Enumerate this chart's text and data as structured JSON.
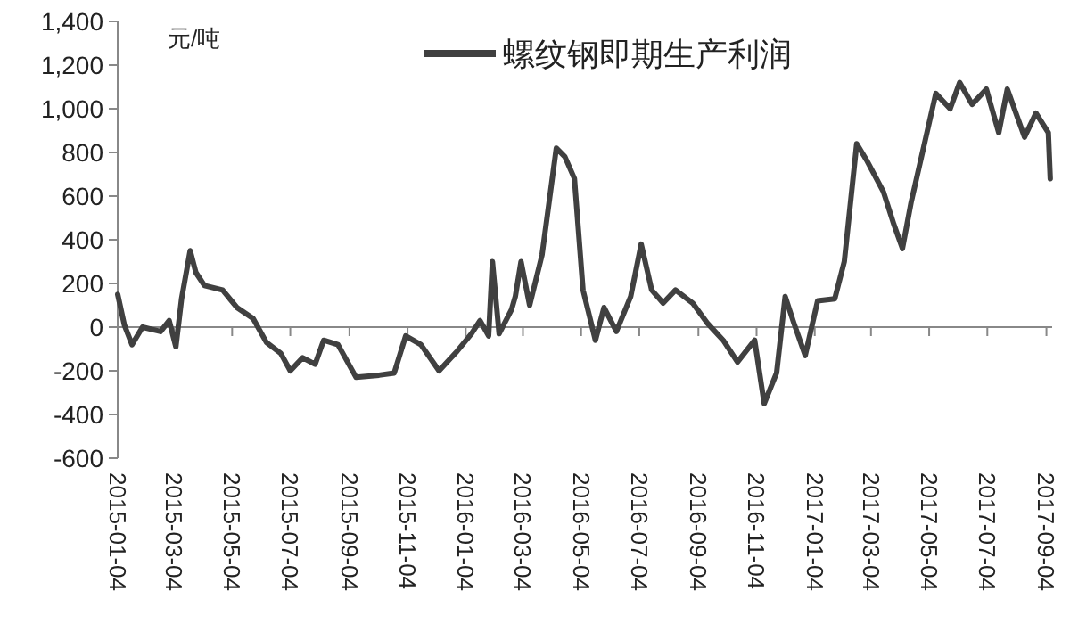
{
  "chart_data": {
    "type": "line",
    "ylabel": "元/吨",
    "legend": "top",
    "xlim": [
      "2015-01-04",
      "2017-09-10"
    ],
    "xticks": [
      "2015-01-04",
      "2015-03-04",
      "2015-05-04",
      "2015-07-04",
      "2015-09-04",
      "2015-11-04",
      "2016-01-04",
      "2016-03-04",
      "2016-05-04",
      "2016-07-04",
      "2016-09-04",
      "2016-11-04",
      "2017-01-04",
      "2017-03-04",
      "2017-05-04",
      "2017-07-04",
      "2017-09-04"
    ],
    "ylim": [
      -600,
      1400
    ],
    "yticks": [
      {
        "value": -600,
        "label": "-600"
      },
      {
        "value": -400,
        "label": "-400"
      },
      {
        "value": -200,
        "label": "-200"
      },
      0,
      200,
      400,
      600,
      800,
      {
        "value": 1000,
        "label": "1,000"
      },
      {
        "value": 1200,
        "label": "1,200"
      },
      {
        "value": 1400,
        "label": "1,400"
      }
    ],
    "series": [
      {
        "name": "螺纹钢即期生产利润",
        "color": "#404040",
        "x": [
          "2015-01-04",
          "2015-01-11",
          "2015-01-19",
          "2015-01-30",
          "2015-02-18",
          "2015-02-27",
          "2015-03-06",
          "2015-03-12",
          "2015-03-21",
          "2015-03-27",
          "2015-04-05",
          "2015-04-24",
          "2015-05-09",
          "2015-05-26",
          "2015-06-09",
          "2015-06-24",
          "2015-07-04",
          "2015-07-17",
          "2015-07-30",
          "2015-08-08",
          "2015-08-23",
          "2015-09-11",
          "2015-10-05",
          "2015-10-21",
          "2015-11-02",
          "2015-11-18",
          "2015-12-07",
          "2015-12-26",
          "2016-01-10",
          "2016-01-19",
          "2016-01-28",
          "2016-02-01",
          "2016-02-08",
          "2016-02-21",
          "2016-02-25",
          "2016-03-02",
          "2016-03-11",
          "2016-03-24",
          "2016-04-08",
          "2016-04-17",
          "2016-04-27",
          "2016-05-06",
          "2016-05-19",
          "2016-05-28",
          "2016-06-10",
          "2016-06-25",
          "2016-07-06",
          "2016-07-17",
          "2016-07-29",
          "2016-08-11",
          "2016-08-29",
          "2016-09-13",
          "2016-09-30",
          "2016-10-15",
          "2016-11-02",
          "2016-11-12",
          "2016-11-25",
          "2016-12-04",
          "2016-12-13",
          "2016-12-25",
          "2017-01-07",
          "2017-01-25",
          "2017-02-04",
          "2017-02-17",
          "2017-02-28",
          "2017-03-17",
          "2017-03-28",
          "2017-04-06",
          "2017-04-15",
          "2017-04-28",
          "2017-05-11",
          "2017-05-26",
          "2017-06-05",
          "2017-06-18",
          "2017-07-03",
          "2017-07-16",
          "2017-07-25",
          "2017-08-12",
          "2017-08-24",
          "2017-09-06",
          "2017-09-08"
        ],
        "values": [
          150,
          10,
          -80,
          0,
          -20,
          30,
          -90,
          130,
          350,
          250,
          190,
          170,
          90,
          40,
          -70,
          -120,
          -200,
          -140,
          -170,
          -60,
          -80,
          -230,
          -220,
          -210,
          -40,
          -80,
          -200,
          -110,
          -30,
          30,
          -40,
          300,
          -30,
          80,
          140,
          300,
          100,
          330,
          820,
          780,
          680,
          170,
          -60,
          90,
          -20,
          140,
          380,
          170,
          110,
          170,
          110,
          20,
          -60,
          -160,
          -60,
          -350,
          -210,
          140,
          20,
          -130,
          120,
          130,
          300,
          840,
          760,
          620,
          470,
          360,
          570,
          820,
          1070,
          1000,
          1120,
          1020,
          1090,
          890,
          1090,
          870,
          980,
          890,
          680
        ]
      }
    ]
  }
}
